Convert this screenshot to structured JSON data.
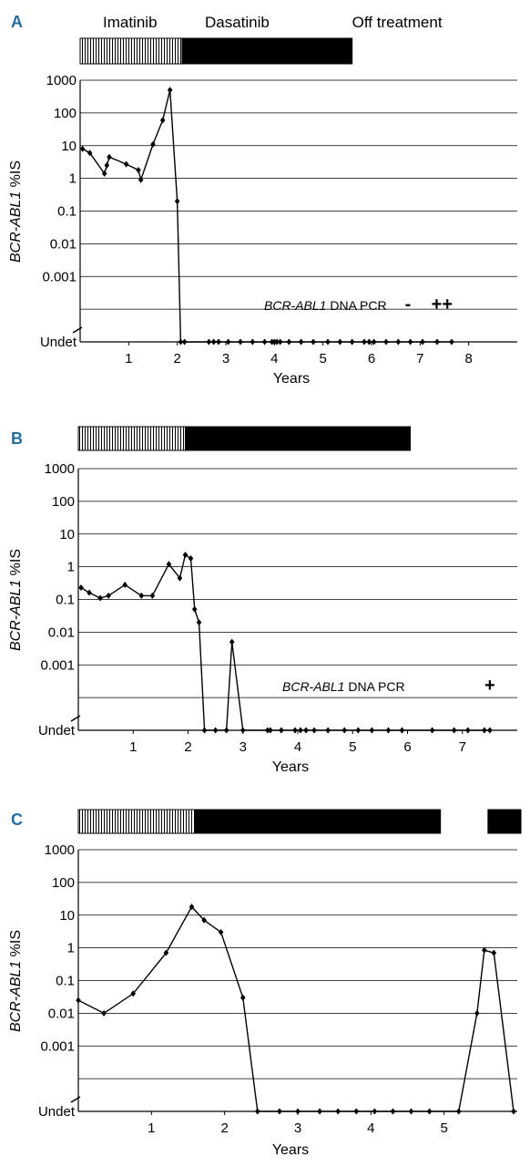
{
  "chart_data": [
    {
      "type": "line",
      "panel": "A",
      "treatments": [
        {
          "name": "Imatinib",
          "start": 0,
          "end": 2.1,
          "pattern": "striped"
        },
        {
          "name": "Dasatinib",
          "start": 2.1,
          "end": 5.6,
          "pattern": "solid"
        },
        {
          "name": "Off treatment",
          "start": 5.6,
          "end": 9.0,
          "pattern": "none"
        }
      ],
      "xlabel": "Years",
      "ylabel": "BCR-ABL1 %IS",
      "ylabel_italic": "BCR-ABL1",
      "ylabel_rest": " %IS",
      "yscale": "log",
      "y_ticks": [
        "1000",
        "100",
        "10",
        "1",
        "0.1",
        "0.01",
        "0.001",
        "Undet"
      ],
      "x_ticks": [
        "1",
        "2",
        "3",
        "4",
        "5",
        "6",
        "7",
        "8"
      ],
      "xlim": [
        0,
        9
      ],
      "points": [
        [
          0.05,
          8
        ],
        [
          0.2,
          6
        ],
        [
          0.5,
          1.4
        ],
        [
          0.55,
          2.5
        ],
        [
          0.6,
          4.5
        ],
        [
          0.95,
          2.7
        ],
        [
          1.2,
          1.8
        ],
        [
          1.25,
          0.9
        ],
        [
          1.5,
          11
        ],
        [
          1.7,
          60
        ],
        [
          1.85,
          500
        ],
        [
          2.0,
          0.2
        ],
        [
          2.07,
          "Undet"
        ],
        [
          2.15,
          "Undet"
        ],
        [
          2.65,
          "Undet"
        ],
        [
          2.75,
          "Undet"
        ],
        [
          2.85,
          "Undet"
        ],
        [
          3.05,
          "Undet"
        ],
        [
          3.3,
          "Undet"
        ],
        [
          3.55,
          "Undet"
        ],
        [
          3.8,
          "Undet"
        ],
        [
          3.95,
          "Undet"
        ],
        [
          4.0,
          "Undet"
        ],
        [
          4.05,
          "Undet"
        ],
        [
          4.12,
          "Undet"
        ],
        [
          4.3,
          "Undet"
        ],
        [
          4.55,
          "Undet"
        ],
        [
          4.8,
          "Undet"
        ],
        [
          5.1,
          "Undet"
        ],
        [
          5.35,
          "Undet"
        ],
        [
          5.6,
          "Undet"
        ],
        [
          5.85,
          "Undet"
        ],
        [
          5.95,
          "Undet"
        ],
        [
          6.05,
          "Undet"
        ],
        [
          6.3,
          "Undet"
        ],
        [
          6.55,
          "Undet"
        ],
        [
          6.8,
          "Undet"
        ],
        [
          7.05,
          "Undet"
        ],
        [
          7.35,
          "Undet"
        ],
        [
          7.65,
          "Undet"
        ]
      ],
      "pcr_label_italic": "BCR-ABL1",
      "pcr_label_rest": " DNA PCR",
      "pcr_marks": [
        {
          "x": 6.75,
          "text": "-"
        },
        {
          "x": 7.45,
          "text": "++"
        }
      ]
    },
    {
      "type": "line",
      "panel": "B",
      "treatments": [
        {
          "name": "",
          "start": 0,
          "end": 1.95,
          "pattern": "striped"
        },
        {
          "name": "",
          "start": 1.95,
          "end": 6.05,
          "pattern": "solid"
        }
      ],
      "xlabel": "Years",
      "ylabel": "BCR-ABL1 %IS",
      "ylabel_italic": "BCR-ABL1",
      "ylabel_rest": " %IS",
      "yscale": "log",
      "y_ticks": [
        "1000",
        "100",
        "10",
        "1",
        "0.1",
        "0.01",
        "0.001",
        "Undet"
      ],
      "x_ticks": [
        "1",
        "2",
        "3",
        "4",
        "5",
        "6",
        "7"
      ],
      "xlim": [
        0,
        8
      ],
      "points": [
        [
          0.05,
          0.23
        ],
        [
          0.2,
          0.16
        ],
        [
          0.4,
          0.11
        ],
        [
          0.55,
          0.13
        ],
        [
          0.85,
          0.28
        ],
        [
          1.15,
          0.13
        ],
        [
          1.35,
          0.13
        ],
        [
          1.65,
          1.2
        ],
        [
          1.85,
          0.45
        ],
        [
          1.95,
          2.3
        ],
        [
          2.05,
          1.8
        ],
        [
          2.12,
          0.05
        ],
        [
          2.2,
          0.02
        ],
        [
          2.3,
          "Undet"
        ],
        [
          2.5,
          "Undet"
        ],
        [
          2.7,
          "Undet"
        ],
        [
          2.8,
          0.005
        ],
        [
          3.0,
          "Undet"
        ],
        [
          3.45,
          "Undet"
        ],
        [
          3.5,
          "Undet"
        ],
        [
          3.7,
          "Undet"
        ],
        [
          3.95,
          "Undet"
        ],
        [
          4.05,
          "Undet"
        ],
        [
          4.15,
          "Undet"
        ],
        [
          4.3,
          "Undet"
        ],
        [
          4.55,
          "Undet"
        ],
        [
          4.85,
          "Undet"
        ],
        [
          5.1,
          "Undet"
        ],
        [
          5.35,
          "Undet"
        ],
        [
          5.65,
          "Undet"
        ],
        [
          5.9,
          "Undet"
        ],
        [
          6.45,
          "Undet"
        ],
        [
          6.85,
          "Undet"
        ],
        [
          7.1,
          "Undet"
        ],
        [
          7.4,
          "Undet"
        ],
        [
          7.5,
          "Undet"
        ]
      ],
      "pcr_label_italic": "BCR-ABL1",
      "pcr_label_rest": " DNA PCR",
      "pcr_marks": [
        {
          "x": 7.5,
          "text": "+"
        }
      ]
    },
    {
      "type": "line",
      "panel": "C",
      "treatments": [
        {
          "name": "",
          "start": 0,
          "end": 1.6,
          "pattern": "striped"
        },
        {
          "name": "",
          "start": 1.6,
          "end": 4.95,
          "pattern": "solid"
        },
        {
          "name": "",
          "start": 5.6,
          "end": 6.05,
          "pattern": "solid"
        }
      ],
      "xlabel": "Years",
      "ylabel": "BCR-ABL1 %IS",
      "ylabel_italic": "BCR-ABL1",
      "ylabel_rest": " %IS",
      "yscale": "log",
      "y_ticks": [
        "1000",
        "100",
        "10",
        "1",
        "0.1",
        "0.01",
        "0.001",
        "Undet"
      ],
      "x_ticks": [
        "1",
        "2",
        "3",
        "4",
        "5"
      ],
      "xlim": [
        0,
        6
      ],
      "points": [
        [
          0,
          0.025
        ],
        [
          0.35,
          0.01
        ],
        [
          0.75,
          0.04
        ],
        [
          1.2,
          0.7
        ],
        [
          1.55,
          18
        ],
        [
          1.72,
          7
        ],
        [
          1.95,
          3
        ],
        [
          2.25,
          0.03
        ],
        [
          2.45,
          "Undet"
        ],
        [
          2.75,
          "Undet"
        ],
        [
          3.0,
          "Undet"
        ],
        [
          3.3,
          "Undet"
        ],
        [
          3.55,
          "Undet"
        ],
        [
          3.8,
          "Undet"
        ],
        [
          4.05,
          "Undet"
        ],
        [
          4.3,
          "Undet"
        ],
        [
          4.55,
          "Undet"
        ],
        [
          4.8,
          "Undet"
        ],
        [
          5.2,
          "Undet"
        ],
        [
          5.45,
          0.01
        ],
        [
          5.55,
          0.85
        ],
        [
          5.68,
          0.7
        ],
        [
          5.95,
          "Undet"
        ]
      ]
    }
  ]
}
